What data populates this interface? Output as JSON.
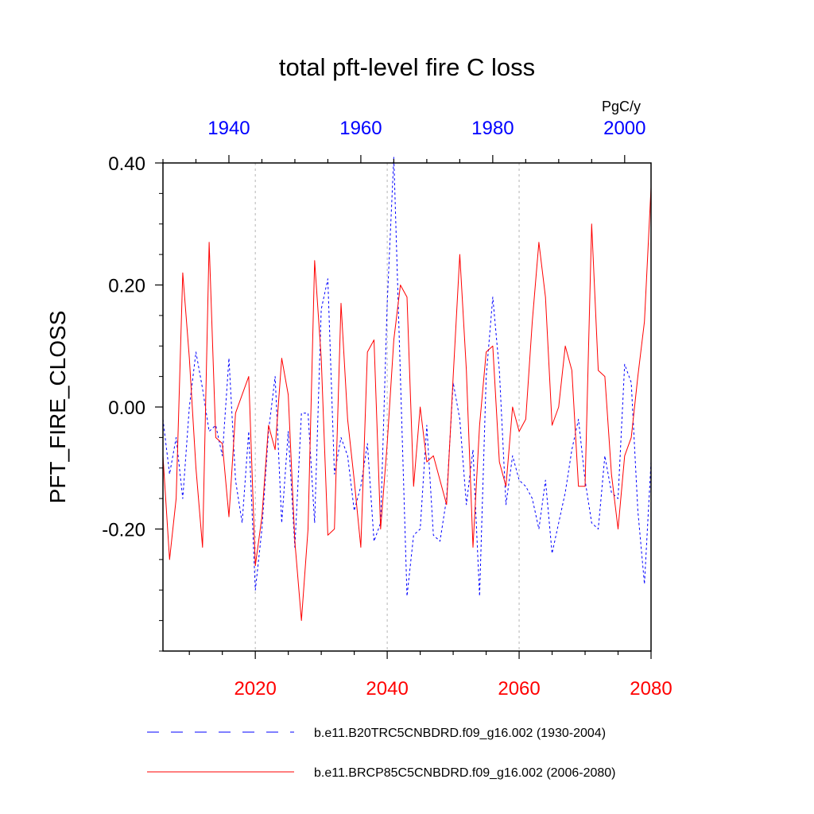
{
  "chart_data": {
    "type": "line",
    "title": "total pft-level fire C loss",
    "ylabel": "PFT_FIRE_CLOSS",
    "units": "PgC/y",
    "ylim": [
      -0.4,
      0.4
    ],
    "yticks": [
      0.4,
      0.2,
      0.0,
      -0.2
    ],
    "ytick_labels": [
      "0.40",
      "0.20",
      "0.00",
      "-0.20"
    ],
    "yminor_step": 0.05,
    "bottom_axis": {
      "xlim": [
        2006,
        2080
      ],
      "ticks": [
        2020,
        2040,
        2060,
        2080
      ],
      "tick_labels": [
        "2020",
        "2040",
        "2060",
        "2080"
      ],
      "color": "#ff0000"
    },
    "top_axis": {
      "xlim": [
        1930,
        2004
      ],
      "ticks": [
        1940,
        1960,
        1980,
        2000
      ],
      "tick_labels": [
        "1940",
        "1960",
        "1980",
        "2000"
      ],
      "color": "#0000ff"
    },
    "grid": "vertical dashed at bottom major ticks",
    "series": [
      {
        "name": "b.e11.B20TRC5CNBDRD.f09_g16.002 (1930-2004)",
        "axis": "top",
        "color": "#0000ff",
        "style": "dashed",
        "x_start": 1930,
        "values": [
          -0.02,
          -0.11,
          -0.05,
          -0.15,
          0.0,
          0.09,
          0.03,
          -0.04,
          -0.03,
          -0.08,
          0.08,
          -0.12,
          -0.19,
          -0.04,
          -0.3,
          -0.2,
          -0.04,
          0.05,
          -0.19,
          -0.04,
          -0.23,
          -0.01,
          -0.01,
          -0.19,
          0.16,
          0.21,
          -0.11,
          -0.05,
          -0.08,
          -0.17,
          -0.13,
          -0.06,
          -0.22,
          -0.19,
          0.17,
          0.41,
          0.05,
          -0.31,
          -0.21,
          -0.2,
          -0.03,
          -0.21,
          -0.22,
          -0.15,
          0.04,
          -0.02,
          -0.16,
          -0.07,
          -0.31,
          0.05,
          0.18,
          0.06,
          -0.16,
          -0.08,
          -0.12,
          -0.13,
          -0.15,
          -0.2,
          -0.12,
          -0.24,
          -0.19,
          -0.14,
          -0.07,
          -0.02,
          -0.12,
          -0.19,
          -0.2,
          -0.08,
          -0.14,
          -0.15,
          0.07,
          0.04,
          -0.17,
          -0.29,
          -0.09
        ]
      },
      {
        "name": "b.e11.BRCP85C5CNBDRD.f09_g16.002 (2006-2080)",
        "axis": "bottom",
        "color": "#ff0000",
        "style": "solid",
        "x_start": 2006,
        "values": [
          -0.08,
          -0.25,
          -0.15,
          0.22,
          0.08,
          -0.1,
          -0.23,
          0.27,
          -0.05,
          -0.06,
          -0.18,
          -0.01,
          0.02,
          0.05,
          -0.26,
          -0.18,
          -0.03,
          -0.07,
          0.08,
          0.02,
          -0.22,
          -0.35,
          -0.2,
          0.24,
          0.08,
          -0.21,
          -0.2,
          0.17,
          -0.02,
          -0.12,
          -0.23,
          0.09,
          0.11,
          -0.2,
          -0.06,
          0.11,
          0.2,
          0.18,
          -0.13,
          0.0,
          -0.09,
          -0.08,
          -0.12,
          -0.16,
          0.05,
          0.25,
          0.06,
          -0.23,
          -0.03,
          0.09,
          0.1,
          -0.09,
          -0.13,
          0.0,
          -0.04,
          -0.02,
          0.14,
          0.27,
          0.18,
          -0.03,
          0.0,
          0.1,
          0.06,
          -0.13,
          -0.13,
          0.3,
          0.06,
          0.05,
          -0.11,
          -0.2,
          -0.08,
          -0.05,
          0.05,
          0.14,
          0.36
        ]
      }
    ]
  }
}
